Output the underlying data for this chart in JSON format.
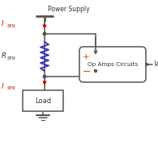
{
  "title": "Power Supply",
  "bg_color": "#ffffff",
  "line_color": "#555555",
  "red_color": "#cc0000",
  "blue_color": "#3333bb",
  "orange_color": "#cc5500",
  "text_color": "#333333",
  "op_amp_label": "Op Amps Circuits",
  "vout_label": "V",
  "vout_sub": "OUT",
  "isen_label": "I",
  "isen_sub": "SEN",
  "rsen_label": "R",
  "rsen_sub": "SEN",
  "load_label": "Load",
  "plus_label": "+",
  "minus_label": "−",
  "figw": 1.95,
  "figh": 1.75,
  "dpi": 100,
  "xlim": [
    0,
    195
  ],
  "ylim": [
    0,
    175
  ]
}
